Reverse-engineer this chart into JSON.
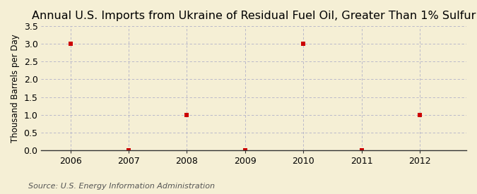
{
  "title": "Annual U.S. Imports from Ukraine of Residual Fuel Oil, Greater Than 1% Sulfur",
  "ylabel": "Thousand Barrels per Day",
  "source": "Source: U.S. Energy Information Administration",
  "x": [
    2006,
    2007,
    2008,
    2009,
    2010,
    2011,
    2012
  ],
  "y": [
    3.0,
    0.0,
    1.0,
    0.0,
    3.0,
    0.0,
    1.0
  ],
  "xlim": [
    2005.5,
    2012.8
  ],
  "ylim": [
    0.0,
    3.5
  ],
  "yticks": [
    0.0,
    0.5,
    1.0,
    1.5,
    2.0,
    2.5,
    3.0,
    3.5
  ],
  "xticks": [
    2006,
    2007,
    2008,
    2009,
    2010,
    2011,
    2012
  ],
  "marker_color": "#cc0000",
  "marker": "s",
  "marker_size": 4,
  "bg_color": "#f5efd5",
  "plot_bg_color": "#f5efd5",
  "grid_color": "#b0b0c8",
  "title_fontsize": 11.5,
  "label_fontsize": 8.5,
  "tick_fontsize": 9,
  "source_fontsize": 8
}
